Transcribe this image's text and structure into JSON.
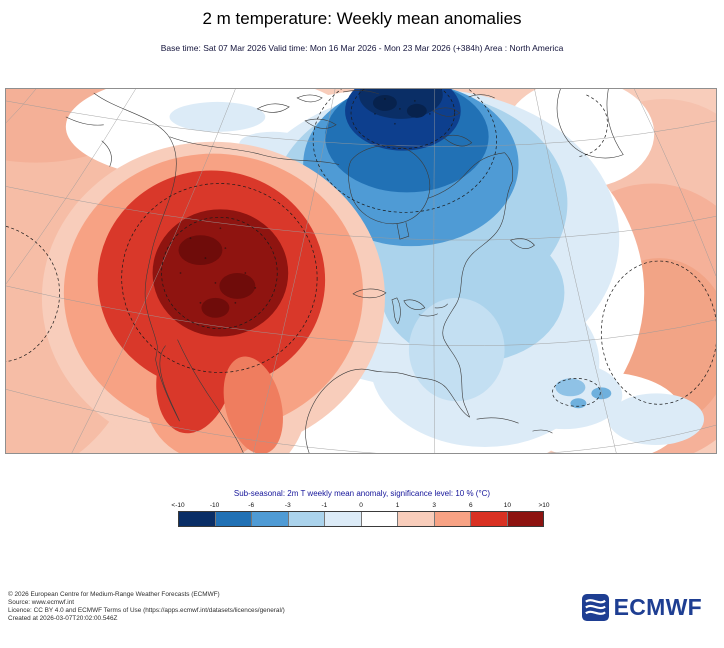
{
  "header": {
    "title": "2 m temperature: Weekly mean anomalies",
    "subtitle": "Base time: Sat 07 Mar 2026 Valid time: Mon 16 Mar 2026 - Mon 23 Mar 2026 (+384h) Area : North America"
  },
  "colorbar": {
    "caption": "Sub-seasonal: 2m T weekly mean anomaly, significance level: 10 % (°C)",
    "ticks": [
      "<-10",
      "-10",
      "-6",
      "-3",
      "-1",
      "0",
      "1",
      "3",
      "6",
      "10",
      ">10"
    ],
    "segments": [
      "#0a2e66",
      "#2171b5",
      "#4f9bd5",
      "#abd3ec",
      "#dcebf7",
      "#ffffff",
      "#f8cdbb",
      "#f7a284",
      "#d93123",
      "#8d1310"
    ]
  },
  "footer": {
    "lines": [
      "© 2026 European Centre for Medium-Range Weather Forecasts (ECMWF)",
      "Source: www.ecmwf.int",
      "Licence: CC BY 4.0 and ECMWF Terms of Use (https://apps.ecmwf.int/datasets/licences/general/)",
      "Created at 2026-03-07T20:02:00.546Z"
    ]
  },
  "logo": {
    "text": "ECMWF",
    "color": "#1e3e92"
  },
  "colors": {
    "logo_blue": "#1e3e92",
    "caption_blue": "#15159a",
    "warm_core": "#8f1410",
    "cold_core": "#0a2e66"
  },
  "chart_data": {
    "type": "heatmap",
    "title": "2 m temperature: Weekly mean anomalies",
    "variable": "2 m temperature weekly mean anomaly",
    "unit": "°C",
    "area": "North America",
    "base_time": "Sat 07 Mar 2026",
    "valid_time": "Mon 16 Mar 2026 - Mon 23 Mar 2026 (+384h)",
    "lead_time": "+384h",
    "significance_level": "10 %",
    "legend_title": "Sub-seasonal: 2m T weekly mean anomaly, significance level: 10 % (°C)",
    "scale_boundaries": [
      -10,
      -6,
      -3,
      -1,
      0,
      1,
      3,
      6,
      10
    ],
    "scale_tick_labels": [
      "<-10",
      "-10",
      "-6",
      "-3",
      "-1",
      "0",
      "1",
      "3",
      "6",
      "10",
      ">10"
    ],
    "palette": [
      "#0a2e66",
      "#2171b5",
      "#4f9bd5",
      "#abd3ec",
      "#dcebf7",
      "#ffffff",
      "#f8cdbb",
      "#f7a284",
      "#d93123",
      "#8d1310"
    ],
    "features": [
      {
        "region": "Western United States / Great Basin",
        "anomaly_c": "greater than +10 (core), +6 to +10 ring, dashed significance contour"
      },
      {
        "region": "Baja California and northwest Mexico",
        "anomaly_c": "+3 to +10 tongue extending south"
      },
      {
        "region": "Northeastern Canada, Hudson Bay and Baffin region",
        "anomaly_c": "less than -10 (core at top), -10 to -6 ring, dashed significance contour"
      },
      {
        "region": "Great Lakes and eastern North America",
        "anomaly_c": "-3 to -1"
      },
      {
        "region": "Caribbean / western Atlantic patches",
        "anomaly_c": "-3 to -1 spots"
      },
      {
        "region": "Pacific flank (west edge)",
        "anomaly_c": "+1 to +3"
      },
      {
        "region": "Central Atlantic (east edge)",
        "anomaly_c": "+1 to +6 blob with dashed contour"
      }
    ],
    "grid": "graticule of curved meridians and parallels (polar projection)",
    "legend_position": "bottom center"
  }
}
